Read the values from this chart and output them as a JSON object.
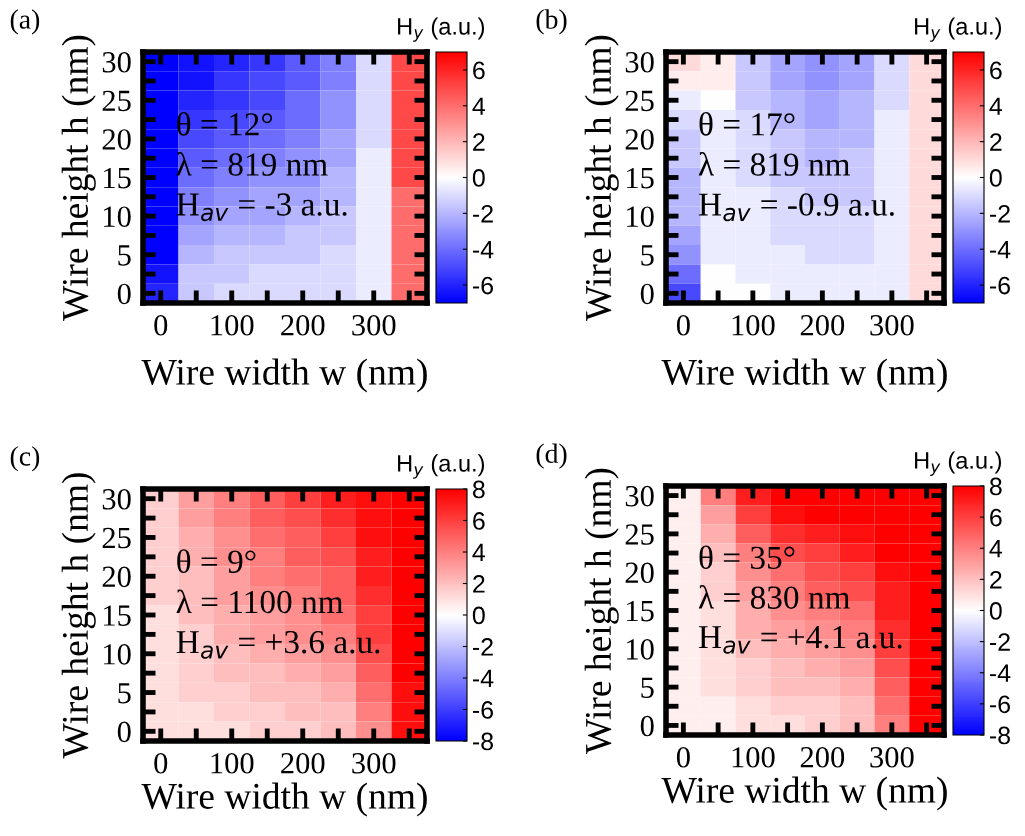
{
  "chart_data": [
    {
      "type": "heatmap",
      "title": "(a)",
      "xlabel": "Wire width w (nm)",
      "ylabel": "Wire height h (nm)",
      "clabel": "H$_{y}$ (a.u.)",
      "categories": [
        "0",
        null,
        "100",
        null,
        "200",
        null,
        "300",
        null
      ],
      "y_categories": [
        "30",
        null,
        "25",
        null,
        "20",
        null,
        "15",
        null,
        "10",
        null,
        "5",
        null,
        "0"
      ],
      "clim": [
        -7,
        7
      ],
      "cticks": [
        -6,
        -4,
        -2,
        0,
        2,
        4,
        6
      ],
      "cells": [
        [
          -7,
          -6.5,
          -6,
          -5.5,
          -4.5,
          -3.5,
          -1,
          5
        ],
        [
          -7,
          -6.5,
          -5.5,
          -5,
          -4.5,
          -3.5,
          -1,
          5
        ],
        [
          -7,
          -6,
          -5.5,
          -5,
          -4,
          -3,
          -1,
          5
        ],
        [
          -7,
          -5.5,
          -5,
          -4.5,
          -4,
          -3,
          -1,
          5
        ],
        [
          -7,
          -5,
          -4.5,
          -4,
          -3.5,
          -2.5,
          -1,
          5
        ],
        [
          -7,
          -4.5,
          -4,
          -3.5,
          -3,
          -2.5,
          -0.5,
          5
        ],
        [
          -7,
          -4,
          -3.5,
          -3,
          -3,
          -2,
          -0.5,
          5
        ],
        [
          -7,
          -3.5,
          -3,
          -2.5,
          -2.5,
          -2,
          -0.5,
          4
        ],
        [
          -7,
          -3,
          -2.5,
          -2.5,
          -2,
          -1.5,
          -0.5,
          4
        ],
        [
          -7,
          -2.5,
          -2,
          -2,
          -1.5,
          -1.5,
          -0.5,
          4
        ],
        [
          -7,
          -2,
          -1.5,
          -1.5,
          -1.5,
          -1,
          -0.5,
          4
        ],
        [
          -6.5,
          -1.5,
          -1.5,
          -1,
          -1,
          -1,
          -0.5,
          4
        ],
        [
          -6,
          -1.5,
          -1,
          -1,
          -1,
          -1,
          -0.5,
          4
        ]
      ],
      "annotations": [
        "θ = 12°",
        "λ = 819 nm",
        "H$_{av}$ = -3 a.u."
      ]
    },
    {
      "type": "heatmap",
      "title": "(b)",
      "xlabel": "Wire width w (nm)",
      "ylabel": "Wire height h (nm)",
      "clabel": "H$_{y}$ (a.u.)",
      "categories": [
        "0",
        null,
        "100",
        null,
        "200",
        null,
        "300",
        null
      ],
      "y_categories": [
        "30",
        null,
        "25",
        null,
        "20",
        null,
        "15",
        null,
        "10",
        null,
        "5",
        null,
        "0"
      ],
      "clim": [
        -7,
        7
      ],
      "cticks": [
        -6,
        -4,
        -2,
        0,
        2,
        4,
        6
      ],
      "cells": [
        [
          1,
          0.5,
          -1.5,
          -2.5,
          -3,
          -2.5,
          -1,
          1
        ],
        [
          0.5,
          0.5,
          -1.5,
          -2.5,
          -3,
          -2.5,
          -1,
          1
        ],
        [
          -0.5,
          0,
          -1.5,
          -2,
          -2.5,
          -2,
          -1,
          1
        ],
        [
          -1,
          -0.5,
          -1,
          -2,
          -2.5,
          -2,
          -0.5,
          1
        ],
        [
          -1.5,
          -0.5,
          -1,
          -1.5,
          -2,
          -2,
          -0.5,
          1
        ],
        [
          -1.5,
          -0.5,
          -1,
          -1.5,
          -2,
          -1.5,
          -0.5,
          1
        ],
        [
          -2,
          -0.5,
          -1,
          -1.5,
          -1.5,
          -1.5,
          -0.5,
          1
        ],
        [
          -2,
          -0.5,
          -0.5,
          -1,
          -1.5,
          -1.5,
          -0.5,
          1
        ],
        [
          -2,
          -0.5,
          -0.5,
          -1,
          -1,
          -1,
          -0.5,
          1
        ],
        [
          -2.5,
          -0.5,
          -0.5,
          -1,
          -1,
          -1,
          -0.5,
          1
        ],
        [
          -3,
          -0.5,
          -0.5,
          -0.5,
          -1,
          -1,
          -0.5,
          1
        ],
        [
          -4,
          0,
          -0.5,
          -0.5,
          -0.5,
          -0.5,
          -0.5,
          1
        ],
        [
          -5,
          0,
          0,
          -0.5,
          -0.5,
          -0.5,
          -0.5,
          1
        ]
      ],
      "annotations": [
        "θ = 17°",
        "λ = 819 nm",
        "H$_{av}$ = -0.9 a.u."
      ]
    },
    {
      "type": "heatmap",
      "title": "(c)",
      "xlabel": "Wire width w (nm)",
      "ylabel": "Wire height h (nm)",
      "clabel": "H$_{y}$ (a.u.)",
      "categories": [
        "0",
        null,
        "100",
        null,
        "200",
        null,
        "300",
        null
      ],
      "y_categories": [
        "30",
        null,
        "25",
        null,
        "20",
        null,
        "15",
        null,
        "10",
        null,
        "5",
        null,
        "0"
      ],
      "clim": [
        -8,
        8
      ],
      "cticks": [
        -8,
        -6,
        -4,
        -2,
        0,
        2,
        4,
        6,
        8
      ],
      "cells": [
        [
          1.5,
          3,
          4,
          5,
          6,
          7,
          7.5,
          8
        ],
        [
          1.5,
          3,
          4,
          5,
          5.5,
          6.5,
          7.5,
          8
        ],
        [
          1.5,
          2.5,
          3.5,
          4.5,
          5,
          6,
          7.5,
          8
        ],
        [
          1.5,
          2.5,
          3.5,
          4,
          5,
          5.5,
          7,
          8
        ],
        [
          1.5,
          2,
          3,
          4,
          4.5,
          5,
          7,
          8
        ],
        [
          1.5,
          2,
          3,
          3.5,
          4,
          5,
          6.5,
          8
        ],
        [
          1,
          2,
          2.5,
          3,
          3.5,
          4.5,
          6,
          8
        ],
        [
          1,
          1.5,
          2.5,
          3,
          3.5,
          4,
          6,
          8
        ],
        [
          1,
          1.5,
          2,
          2.5,
          3,
          3.5,
          5.5,
          8
        ],
        [
          1,
          1.5,
          2,
          2,
          2.5,
          3,
          5,
          8
        ],
        [
          1,
          1.5,
          1.5,
          2,
          2,
          2.5,
          4.5,
          7.5
        ],
        [
          1,
          1,
          1.5,
          1.5,
          2,
          2,
          4,
          7.5
        ],
        [
          1,
          1,
          1,
          1.5,
          1.5,
          2,
          3.5,
          7.5
        ]
      ],
      "annotations": [
        "θ = 9°",
        "λ = 1100 nm",
        "H$_{av}$ = +3.6 a.u."
      ]
    },
    {
      "type": "heatmap",
      "title": "(d)",
      "xlabel": "Wire width w (nm)",
      "ylabel": "Wire height h (nm)",
      "clabel": "H$_{y}$ (a.u.)",
      "categories": [
        "0",
        null,
        "100",
        null,
        "200",
        null,
        "300",
        null
      ],
      "y_categories": [
        "30",
        null,
        "25",
        null,
        "20",
        null,
        "15",
        null,
        "10",
        null,
        "5",
        null,
        "0"
      ],
      "clim": [
        -8,
        8
      ],
      "cticks": [
        -8,
        -6,
        -4,
        -2,
        0,
        2,
        4,
        6,
        8
      ],
      "cells": [
        [
          0.5,
          4,
          7,
          8,
          8,
          8,
          8,
          8
        ],
        [
          0.5,
          3,
          6,
          7.5,
          8,
          8,
          8,
          8
        ],
        [
          0.5,
          2.5,
          5,
          6.5,
          7,
          7.5,
          8,
          8
        ],
        [
          0.5,
          2,
          4,
          5.5,
          6,
          7,
          8,
          8
        ],
        [
          0.5,
          1.5,
          3.5,
          4.5,
          5.5,
          6,
          7.5,
          8
        ],
        [
          0.5,
          1.5,
          3,
          4,
          5,
          5.5,
          7,
          8
        ],
        [
          0.5,
          1,
          2.5,
          3.5,
          4,
          4.5,
          7,
          8
        ],
        [
          0.5,
          1,
          2.5,
          3,
          3.5,
          4,
          6.5,
          8
        ],
        [
          0.5,
          1,
          2,
          2.5,
          3,
          3.5,
          6,
          8
        ],
        [
          0.5,
          1,
          1.5,
          2,
          2.5,
          3,
          5.5,
          8
        ],
        [
          0.5,
          1,
          1.5,
          2,
          2,
          2.5,
          5,
          8
        ],
        [
          0.5,
          0.5,
          1,
          1.5,
          1.5,
          2,
          4.5,
          8
        ],
        [
          0.5,
          0.5,
          1,
          1,
          1.5,
          2,
          4,
          8
        ]
      ],
      "annotations": [
        "θ = 35°",
        "λ = 830 nm",
        "H$_{av}$ = +4.1 a.u."
      ]
    }
  ]
}
